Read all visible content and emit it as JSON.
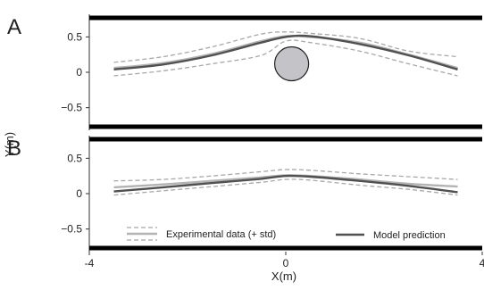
{
  "chart_data": {
    "type": "line",
    "xlabel": "X(m)",
    "ylabel": "Y(m)",
    "xlim": [
      -4,
      4
    ],
    "x_ticks": [
      "-4",
      "0",
      "4"
    ],
    "y_ticks": [
      "0.5",
      "0",
      "−0.5"
    ],
    "colors": {
      "experimental": "#b3b3b3",
      "experimental_std": "#a8a8a8",
      "model": "#505050",
      "walls": "#000000",
      "obstacle_fill": "#c3c3c8"
    },
    "legend": {
      "placement": "bottom",
      "experimental": "Experimental data (+ std)",
      "model": "Model prediction"
    },
    "panels": [
      {
        "label": "A",
        "ylim": [
          -0.82,
          0.82
        ],
        "walls_y": [
          0.77,
          -0.77
        ],
        "obstacle": {
          "x": 0.12,
          "y": 0.12,
          "radius": 0.24
        },
        "experimental": {
          "x": [
            -3.5,
            -2.5,
            -1.5,
            -0.5,
            0,
            0.5,
            1.5,
            2.5,
            3.5
          ],
          "y": [
            0.06,
            0.13,
            0.26,
            0.44,
            0.51,
            0.5,
            0.42,
            0.25,
            0.06
          ]
        },
        "std_upper": {
          "x": [
            -3.5,
            -2.5,
            -1.5,
            -0.5,
            0,
            0.5,
            1.5,
            2.5,
            3.5
          ],
          "y": [
            0.14,
            0.22,
            0.36,
            0.54,
            0.57,
            0.55,
            0.48,
            0.3,
            0.22
          ]
        },
        "std_lower": {
          "x": [
            -3.5,
            -2.5,
            -1.5,
            -0.5,
            0,
            0.5,
            1.5,
            2.5,
            3.5
          ],
          "y": [
            -0.05,
            0.02,
            0.12,
            0.24,
            0.44,
            0.42,
            0.3,
            0.12,
            -0.05
          ]
        },
        "model": {
          "x": [
            -3.5,
            -2.5,
            -1.5,
            -0.5,
            0,
            0.5,
            1.5,
            2.5,
            3.5
          ],
          "y": [
            0.04,
            0.11,
            0.24,
            0.42,
            0.5,
            0.51,
            0.4,
            0.24,
            0.04
          ]
        }
      },
      {
        "label": "B",
        "ylim": [
          -0.82,
          0.82
        ],
        "walls_y": [
          0.77,
          -0.77
        ],
        "experimental": {
          "x": [
            -3.5,
            -2.5,
            -1.5,
            -0.5,
            0,
            0.5,
            1.5,
            2.5,
            3.5
          ],
          "y": [
            0.09,
            0.13,
            0.18,
            0.23,
            0.26,
            0.25,
            0.2,
            0.14,
            0.1
          ]
        },
        "std_upper": {
          "x": [
            -3.5,
            -2.5,
            -1.5,
            -0.5,
            0,
            0.5,
            1.5,
            2.5,
            3.5
          ],
          "y": [
            0.18,
            0.2,
            0.25,
            0.31,
            0.34,
            0.33,
            0.28,
            0.24,
            0.2
          ]
        },
        "std_lower": {
          "x": [
            -3.5,
            -2.5,
            -1.5,
            -0.5,
            0,
            0.5,
            1.5,
            2.5,
            3.5
          ],
          "y": [
            -0.02,
            0.04,
            0.1,
            0.16,
            0.2,
            0.19,
            0.12,
            0.06,
            -0.02
          ]
        },
        "model": {
          "x": [
            -3.5,
            -2.5,
            -1.5,
            -0.5,
            0,
            0.5,
            1.5,
            2.5,
            3.5
          ],
          "y": [
            0.03,
            0.09,
            0.15,
            0.21,
            0.25,
            0.24,
            0.18,
            0.11,
            0.02
          ]
        }
      }
    ]
  }
}
